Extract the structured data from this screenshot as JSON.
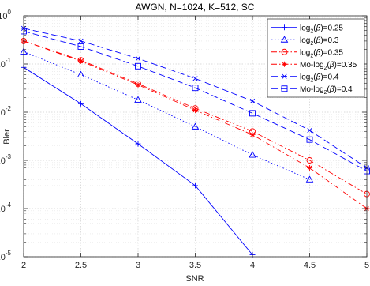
{
  "chart_data": {
    "type": "line",
    "title": "AWGN, N=1024, K=512, SC",
    "xlabel": "SNR",
    "ylabel": "Bler",
    "yscale": "log",
    "xlim": [
      2,
      5
    ],
    "ylim": [
      1e-05,
      1
    ],
    "grid": true,
    "legend_position": "top-right",
    "x_ticks": [
      "2",
      "2.5",
      "3",
      "3.5",
      "4",
      "4.5",
      "5"
    ],
    "y_ticks": [
      {
        "value": 1,
        "exp": "0"
      },
      {
        "value": 0.1,
        "exp": "-1"
      },
      {
        "value": 0.01,
        "exp": "-2"
      },
      {
        "value": 0.001,
        "exp": "-3"
      },
      {
        "value": 0.0001,
        "exp": "-4"
      },
      {
        "value": 1e-05,
        "exp": "-5"
      }
    ],
    "series": [
      {
        "legend_pre": "log",
        "legend_post": "=0.25",
        "color": "#0000ff",
        "dash": "",
        "marker": "plus",
        "x": [
          2,
          2.5,
          3,
          3.5,
          4
        ],
        "values": [
          0.085,
          0.015,
          0.0022,
          0.0003,
          1.1e-05
        ]
      },
      {
        "legend_pre": "log",
        "legend_post": "=0.3",
        "color": "#0000ff",
        "dash": "1.5,2.5",
        "marker": "triangle",
        "x": [
          2,
          2.5,
          3,
          3.5,
          4,
          4.5
        ],
        "values": [
          0.18,
          0.06,
          0.018,
          0.005,
          0.0013,
          0.0004
        ]
      },
      {
        "legend_pre": "log",
        "legend_post": "=0.35",
        "color": "#ff0000",
        "dash": "7,3,1.5,3",
        "marker": "circle",
        "x": [
          2,
          2.5,
          3,
          3.5,
          4,
          4.5,
          5
        ],
        "values": [
          0.3,
          0.12,
          0.039,
          0.012,
          0.004,
          0.001,
          0.0002
        ]
      },
      {
        "legend_pre": "Mo-log",
        "legend_post": "=0.35",
        "color": "#ff0000",
        "dash": "7,3,1.5,3",
        "marker": "star",
        "x": [
          2,
          2.5,
          3,
          3.5,
          4,
          4.5,
          5
        ],
        "values": [
          0.3,
          0.115,
          0.037,
          0.011,
          0.0034,
          0.0007,
          0.0001
        ]
      },
      {
        "legend_pre": "log",
        "legend_post": "=0.4",
        "color": "#0000ff",
        "dash": "8,4",
        "marker": "x",
        "x": [
          2,
          2.5,
          3,
          3.5,
          4,
          4.5,
          5
        ],
        "values": [
          0.55,
          0.3,
          0.13,
          0.05,
          0.017,
          0.0042,
          0.0007
        ]
      },
      {
        "legend_pre": "Mo-log",
        "legend_post": "=0.4",
        "color": "#0000ff",
        "dash": "8,4",
        "marker": "square",
        "x": [
          2,
          2.5,
          3,
          3.5,
          4,
          4.5,
          5
        ],
        "values": [
          0.48,
          0.23,
          0.09,
          0.032,
          0.0095,
          0.0027,
          0.0006
        ]
      }
    ]
  }
}
